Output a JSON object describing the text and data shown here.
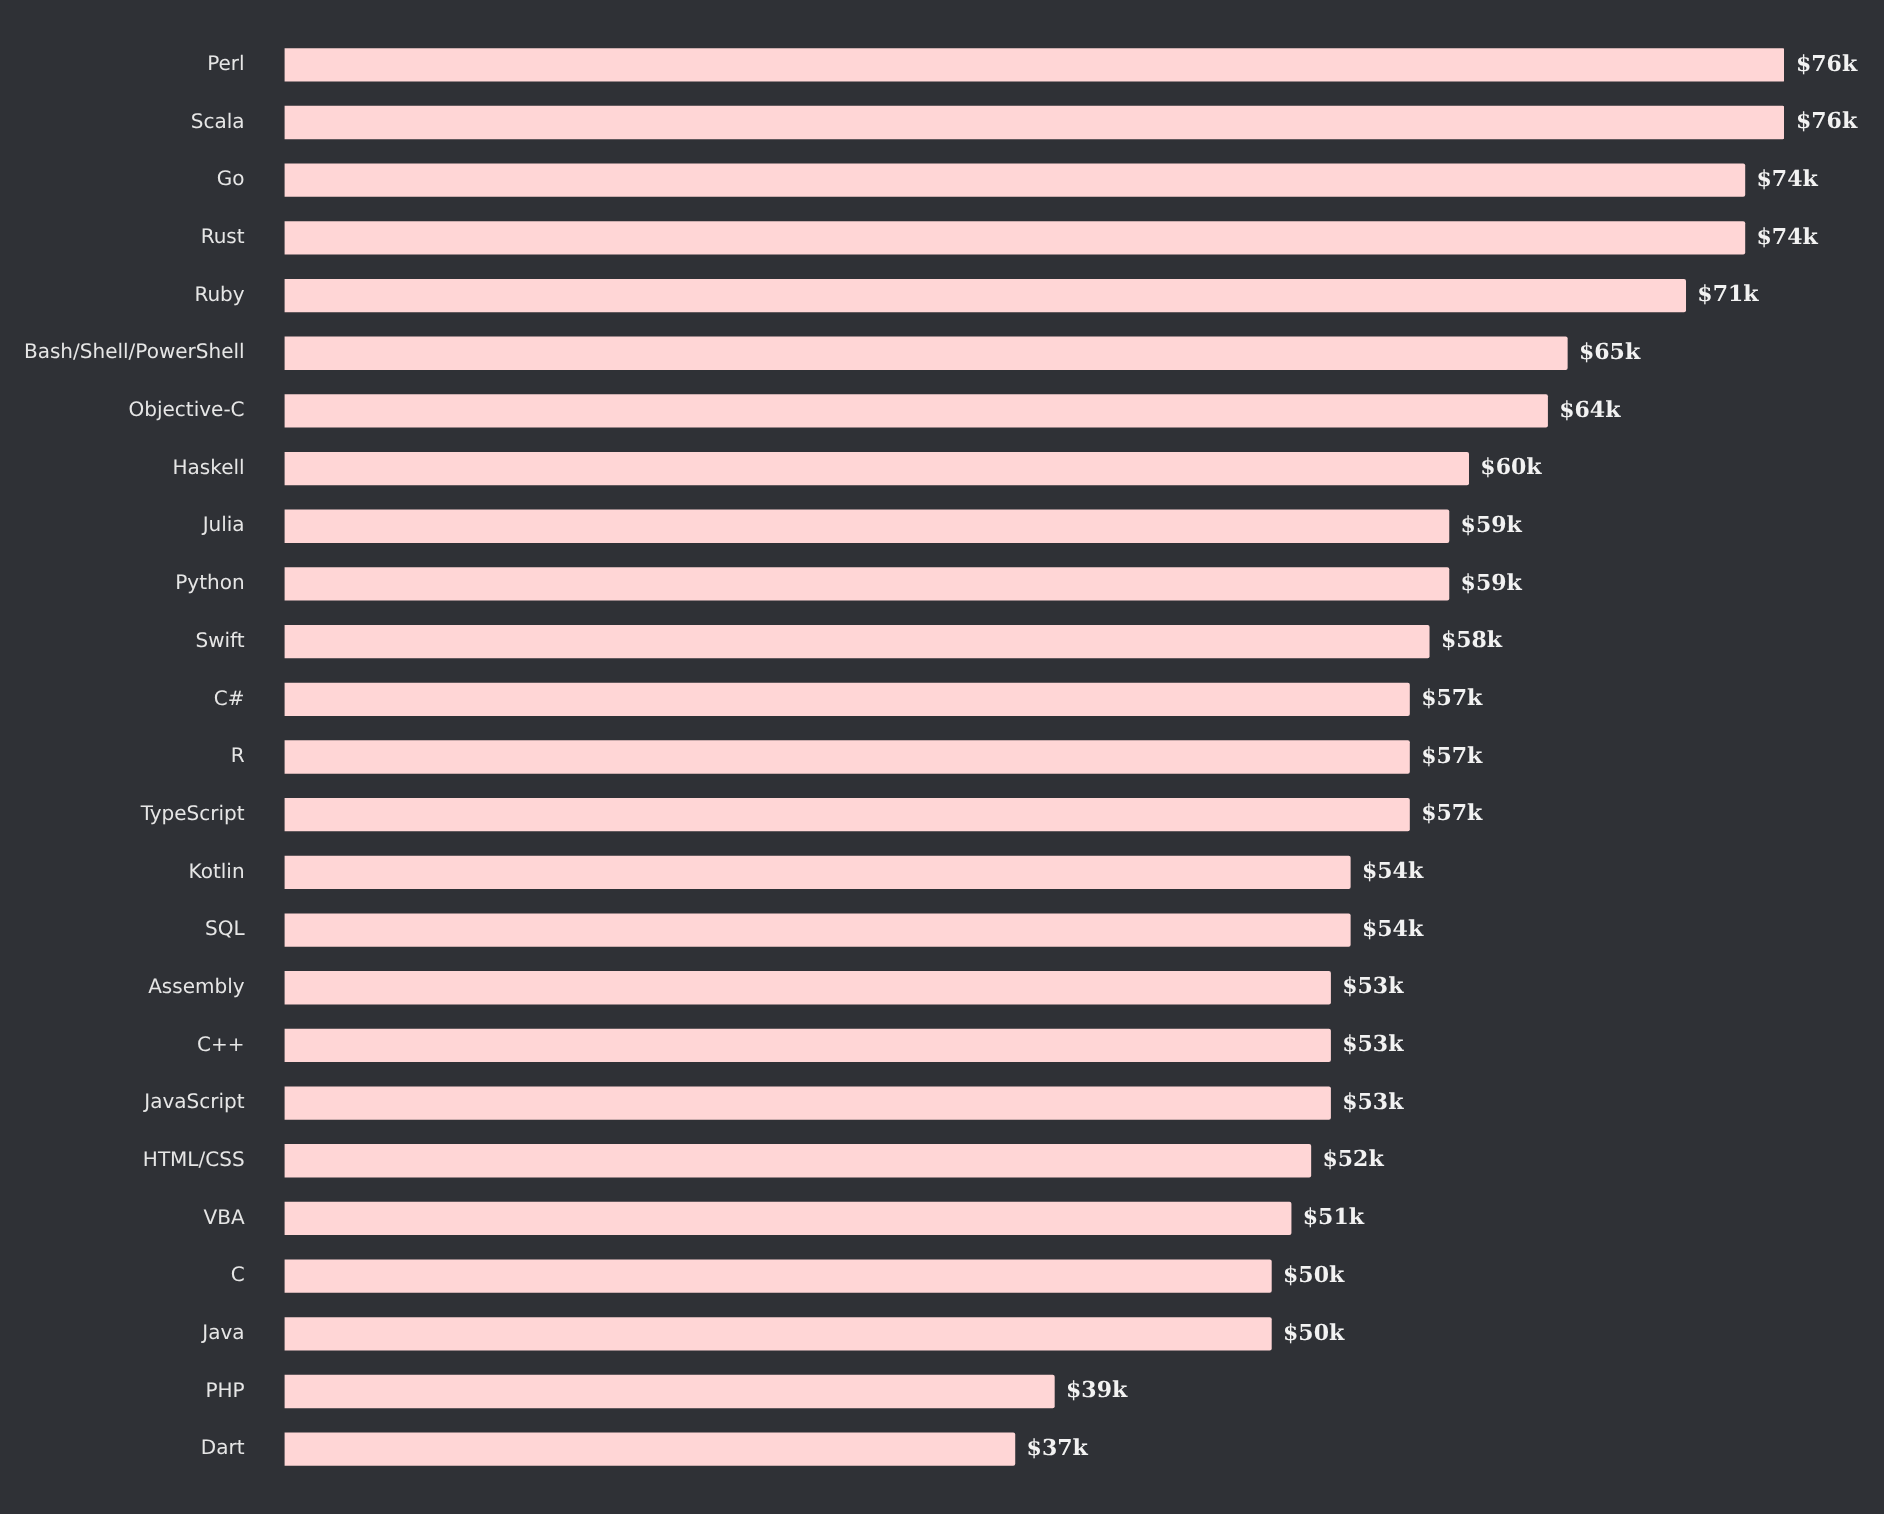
{
  "chart_data": {
    "type": "bar",
    "orientation": "horizontal",
    "categories": [
      "Perl",
      "Scala",
      "Go",
      "Rust",
      "Ruby",
      "Bash/Shell/PowerShell",
      "Objective-C",
      "Haskell",
      "Julia",
      "Python",
      "Swift",
      "C#",
      "R",
      "TypeScript",
      "Kotlin",
      "SQL",
      "Assembly",
      "C++",
      "JavaScript",
      "HTML/CSS",
      "VBA",
      "C",
      "Java",
      "PHP",
      "Dart"
    ],
    "values": [
      76,
      76,
      74,
      74,
      71,
      65,
      64,
      60,
      59,
      59,
      58,
      57,
      57,
      57,
      54,
      54,
      53,
      53,
      53,
      52,
      51,
      50,
      50,
      39,
      37
    ],
    "value_labels": [
      "$76k",
      "$76k",
      "$74k",
      "$74k",
      "$71k",
      "$65k",
      "$64k",
      "$60k",
      "$59k",
      "$59k",
      "$58k",
      "$57k",
      "$57k",
      "$57k",
      "$54k",
      "$54k",
      "$53k",
      "$53k",
      "$53k",
      "$52k",
      "$51k",
      "$50k",
      "$50k",
      "$39k",
      "$37k"
    ],
    "color": "#ffd6d6",
    "tick_labels": "y"
  }
}
